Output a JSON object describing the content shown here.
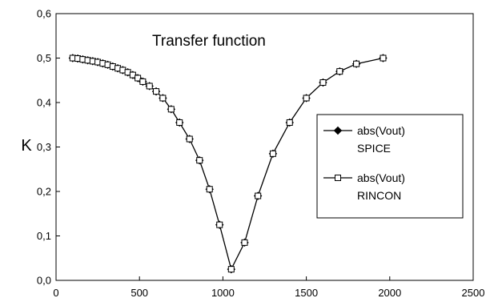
{
  "chart_data": {
    "type": "line",
    "title": "Transfer function",
    "xlabel": "",
    "ylabel": "K",
    "xlim": [
      0,
      2500
    ],
    "ylim": [
      0,
      0.6
    ],
    "x_ticks": [
      "0",
      "500",
      "1000",
      "1500",
      "2000",
      "2500"
    ],
    "y_ticks": [
      "0,0",
      "0,1",
      "0,2",
      "0,3",
      "0,4",
      "0,5",
      "0,6"
    ],
    "grid": false,
    "legend_position": "right",
    "series": [
      {
        "name": "abs(Vout) SPICE",
        "legend_lines": [
          "abs(Vout)",
          "SPICE"
        ],
        "marker": "filled-diamond",
        "x": [
          100,
          130,
          160,
          190,
          220,
          250,
          280,
          310,
          340,
          370,
          400,
          430,
          460,
          490,
          520,
          560,
          600,
          640,
          690,
          740,
          800,
          860,
          920,
          980,
          1050,
          1130,
          1210,
          1300,
          1400,
          1500,
          1600,
          1700,
          1800,
          1960
        ],
        "y": [
          0.5,
          0.499,
          0.497,
          0.495,
          0.493,
          0.491,
          0.488,
          0.485,
          0.481,
          0.477,
          0.473,
          0.468,
          0.462,
          0.455,
          0.447,
          0.437,
          0.425,
          0.41,
          0.385,
          0.355,
          0.318,
          0.27,
          0.205,
          0.125,
          0.025,
          0.085,
          0.19,
          0.285,
          0.355,
          0.41,
          0.445,
          0.47,
          0.487,
          0.5
        ]
      },
      {
        "name": "abs(Vout) RINCON",
        "legend_lines": [
          "abs(Vout)",
          "RINCON"
        ],
        "marker": "open-square",
        "x": [
          100,
          130,
          160,
          190,
          220,
          250,
          280,
          310,
          340,
          370,
          400,
          430,
          460,
          490,
          520,
          560,
          600,
          640,
          690,
          740,
          800,
          860,
          920,
          980,
          1050,
          1130,
          1210,
          1300,
          1400,
          1500,
          1600,
          1700,
          1800,
          1960
        ],
        "y": [
          0.5,
          0.499,
          0.497,
          0.495,
          0.493,
          0.491,
          0.488,
          0.485,
          0.481,
          0.477,
          0.473,
          0.468,
          0.462,
          0.455,
          0.447,
          0.437,
          0.425,
          0.41,
          0.385,
          0.355,
          0.318,
          0.27,
          0.205,
          0.125,
          0.025,
          0.085,
          0.19,
          0.285,
          0.355,
          0.41,
          0.445,
          0.47,
          0.487,
          0.5
        ]
      }
    ]
  }
}
